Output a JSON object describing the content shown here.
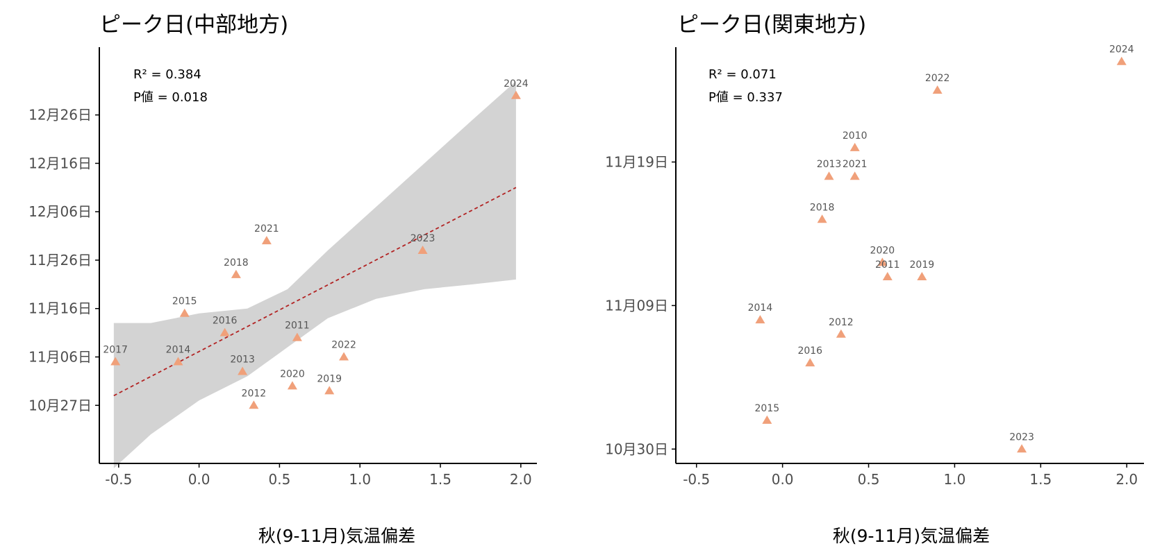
{
  "colors": {
    "point": "#F0A07A",
    "band": "#D3D3D3",
    "fit": "#B22222",
    "axis": "#000000",
    "tick_text": "#4d4d4d"
  },
  "chart_data": [
    {
      "type": "scatter",
      "title": "ピーク日(中部地方)",
      "xlabel": "秋(9-11月)気温偏差",
      "ylabel": "",
      "xlim": [
        -0.62,
        2.1
      ],
      "x_ticks": [
        "-0.5",
        "0.0",
        "0.5",
        "1.0",
        "1.5",
        "2.0"
      ],
      "y_ticks": [
        "10月27日",
        "11月06日",
        "11月16日",
        "11月26日",
        "12月06日",
        "12月16日",
        "12月26日"
      ],
      "r2_text": "R² = 0.384",
      "p_text": "P値 = 0.018",
      "grid": false,
      "points": [
        {
          "label": "2017",
          "x": -0.52,
          "y": "11月05日"
        },
        {
          "label": "2014",
          "x": -0.13,
          "y": "11月05日"
        },
        {
          "label": "2015",
          "x": -0.09,
          "y": "11月15日"
        },
        {
          "label": "2016",
          "x": 0.16,
          "y": "11月11日"
        },
        {
          "label": "2018",
          "x": 0.23,
          "y": "11月23日"
        },
        {
          "label": "2013",
          "x": 0.27,
          "y": "11月03日"
        },
        {
          "label": "2012",
          "x": 0.34,
          "y": "10月27日"
        },
        {
          "label": "2021",
          "x": 0.42,
          "y": "11月30日"
        },
        {
          "label": "2020",
          "x": 0.58,
          "y": "10月31日"
        },
        {
          "label": "2011",
          "x": 0.61,
          "y": "11月10日"
        },
        {
          "label": "2019",
          "x": 0.81,
          "y": "10月30日"
        },
        {
          "label": "2022",
          "x": 0.9,
          "y": "11月06日"
        },
        {
          "label": "2023",
          "x": 1.39,
          "y": "11月28日"
        },
        {
          "label": "2024",
          "x": 1.97,
          "y": "12月30日"
        }
      ],
      "fit_line": [
        {
          "x": -0.53,
          "y": "10月29日"
        },
        {
          "x": 1.97,
          "y": "12月11日"
        }
      ],
      "conf_band": {
        "x": [
          -0.53,
          -0.3,
          0.0,
          0.3,
          0.55,
          0.8,
          1.1,
          1.4,
          1.7,
          1.97
        ],
        "upper": [
          "11月13日",
          "11月13日",
          "11月15日",
          "11月16日",
          "11月20日",
          "11月28日",
          "12月07日",
          "12月16日",
          "12月25日",
          "01月02日"
        ],
        "lower": [
          "10月14日",
          "10月21日",
          "10月28日",
          "11月02日",
          "11月08日",
          "11月14日",
          "11月18日",
          "11月20日",
          "11月21日",
          "11月22日"
        ]
      }
    },
    {
      "type": "scatter",
      "title": "ピーク日(関東地方)",
      "xlabel": "秋(9-11月)気温偏差",
      "ylabel": "",
      "xlim": [
        -0.62,
        2.1
      ],
      "x_ticks": [
        "-0.5",
        "0.0",
        "0.5",
        "1.0",
        "1.5",
        "2.0"
      ],
      "y_ticks": [
        "10月30日",
        "11月09日",
        "11月19日"
      ],
      "r2_text": "R² = 0.071",
      "p_text": "P値 = 0.337",
      "grid": false,
      "points": [
        {
          "label": "2014",
          "x": -0.13,
          "y": "11月08日"
        },
        {
          "label": "2015",
          "x": -0.09,
          "y": "11月01日"
        },
        {
          "label": "2016",
          "x": 0.16,
          "y": "11月05日"
        },
        {
          "label": "2018",
          "x": 0.23,
          "y": "11月15日"
        },
        {
          "label": "2013",
          "x": 0.27,
          "y": "11月18日"
        },
        {
          "label": "2012",
          "x": 0.34,
          "y": "11月07日"
        },
        {
          "label": "2010",
          "x": 0.42,
          "y": "11月20日"
        },
        {
          "label": "2021",
          "x": 0.42,
          "y": "11月18日"
        },
        {
          "label": "2020",
          "x": 0.58,
          "y": "11月12日"
        },
        {
          "label": "2011",
          "x": 0.61,
          "y": "11月11日"
        },
        {
          "label": "2019",
          "x": 0.81,
          "y": "11月11日"
        },
        {
          "label": "2022",
          "x": 0.9,
          "y": "11月24日"
        },
        {
          "label": "2023",
          "x": 1.39,
          "y": "10月30日"
        },
        {
          "label": "2024",
          "x": 1.97,
          "y": "11月26日"
        }
      ]
    }
  ]
}
